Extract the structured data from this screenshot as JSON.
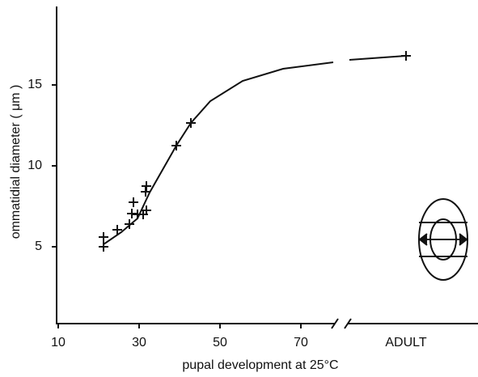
{
  "chart_data": {
    "type": "line",
    "x_label": "pupal development at 25°C",
    "y_label": "ommatidial diameter ( μm )",
    "xlim": [
      10,
      80
    ],
    "ylim": [
      0.25,
      19.75
    ],
    "xticks": [
      10,
      30,
      50,
      70
    ],
    "yticks": [
      5,
      10,
      15
    ],
    "points": {
      "x": [
        21.2,
        21.2,
        24.6,
        27.6,
        28.2,
        28.6,
        29.6,
        31,
        31.8,
        31.6,
        31.8,
        39.2,
        42.8
      ],
      "y": [
        5.6,
        5.0,
        6.05,
        6.4,
        7.05,
        7.75,
        7.0,
        7.0,
        7.25,
        8.4,
        8.75,
        11.25,
        12.65
      ]
    },
    "curve": {
      "x": [
        21.2,
        25.6,
        29.6,
        32.6,
        39.2,
        42.8,
        47.6,
        55.6,
        65.6,
        78
      ],
      "y": [
        5.15,
        5.9,
        6.75,
        8.35,
        11.25,
        12.65,
        14.0,
        15.25,
        16.0,
        16.4
      ]
    },
    "adult": {
      "label": "ADULT",
      "value": 16.8
    },
    "color": "#111111"
  }
}
